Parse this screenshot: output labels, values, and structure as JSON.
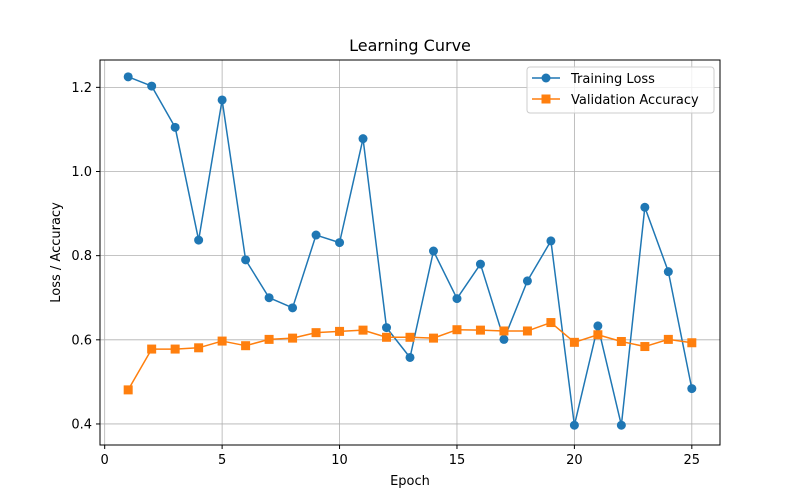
{
  "chart_data": {
    "type": "line",
    "title": "Learning Curve",
    "xlabel": "Epoch",
    "ylabel": "Loss / Accuracy",
    "x": [
      1,
      2,
      3,
      4,
      5,
      6,
      7,
      8,
      9,
      10,
      11,
      12,
      13,
      14,
      15,
      16,
      17,
      18,
      19,
      20,
      21,
      22,
      23,
      24,
      25
    ],
    "xlim": [
      -0.2,
      26.2
    ],
    "ylim": [
      0.35,
      1.265
    ],
    "xticks": [
      0,
      5,
      10,
      15,
      20,
      25
    ],
    "yticks": [
      0.4,
      0.6,
      0.8,
      1.0,
      1.2
    ],
    "xtick_labels": [
      "0",
      "5",
      "10",
      "15",
      "20",
      "25"
    ],
    "ytick_labels": [
      "0.4",
      "0.6",
      "0.8",
      "1.0",
      "1.2"
    ],
    "grid": true,
    "legend_position": "top-right",
    "series": [
      {
        "name": "Training Loss",
        "color": "#1f77b4",
        "marker": "circle",
        "values": [
          1.225,
          1.203,
          1.105,
          0.837,
          1.17,
          0.79,
          0.7,
          0.676,
          0.849,
          0.831,
          1.078,
          0.629,
          0.558,
          0.811,
          0.698,
          0.78,
          0.601,
          0.74,
          0.835,
          0.397,
          0.633,
          0.397,
          0.915,
          0.762,
          0.484
        ]
      },
      {
        "name": "Validation Accuracy",
        "color": "#ff7f0e",
        "marker": "square",
        "values": [
          0.481,
          0.578,
          0.578,
          0.581,
          0.597,
          0.586,
          0.601,
          0.604,
          0.617,
          0.62,
          0.623,
          0.606,
          0.606,
          0.604,
          0.624,
          0.623,
          0.621,
          0.621,
          0.641,
          0.594,
          0.612,
          0.596,
          0.584,
          0.601,
          0.593
        ]
      }
    ]
  }
}
